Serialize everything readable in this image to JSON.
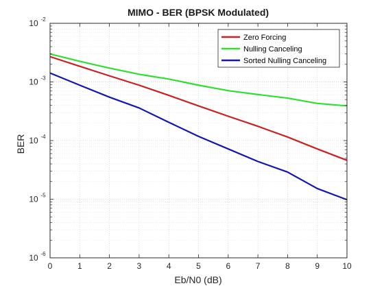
{
  "chart_data": {
    "type": "line",
    "title": "MIMO - BER (BPSK Modulated)",
    "xlabel": "Eb/N0 (dB)",
    "ylabel": "BER",
    "x": [
      0,
      1,
      2,
      3,
      4,
      5,
      6,
      7,
      8,
      9,
      10
    ],
    "xlim": [
      0,
      10
    ],
    "ylim": [
      1e-06,
      0.01
    ],
    "yscale": "log",
    "grid": true,
    "minor_grid": true,
    "legend_position": "top-right",
    "xticks": [
      "0",
      "1",
      "2",
      "3",
      "4",
      "5",
      "6",
      "7",
      "8",
      "9",
      "10"
    ],
    "yticks": [
      {
        "base": "10",
        "exp": "-6",
        "value": 1e-06
      },
      {
        "base": "10",
        "exp": "-5",
        "value": 1e-05
      },
      {
        "base": "10",
        "exp": "-4",
        "value": 0.0001
      },
      {
        "base": "10",
        "exp": "-3",
        "value": 0.001
      },
      {
        "base": "10",
        "exp": "-2",
        "value": 0.01
      }
    ],
    "series": [
      {
        "name": "Zero Forcing",
        "color": "#cc1f1f",
        "values": [
          0.0027,
          0.00185,
          0.00127,
          0.00088,
          0.00059,
          0.00039,
          0.00026,
          0.000175,
          0.000115,
          7.2e-05,
          4.6e-05
        ]
      },
      {
        "name": "Nulling Canceling",
        "color": "#2de02d",
        "values": [
          0.003,
          0.00225,
          0.00172,
          0.00135,
          0.00112,
          0.00088,
          0.00071,
          0.00061,
          0.00053,
          0.00043,
          0.00039
        ]
      },
      {
        "name": "Sorted Nulling Canceling",
        "color": "#1414b4",
        "values": [
          0.00142,
          0.00088,
          0.00055,
          0.00036,
          0.000205,
          0.000118,
          7.2e-05,
          4.4e-05,
          2.9e-05,
          1.52e-05,
          9.8e-06
        ]
      }
    ]
  }
}
